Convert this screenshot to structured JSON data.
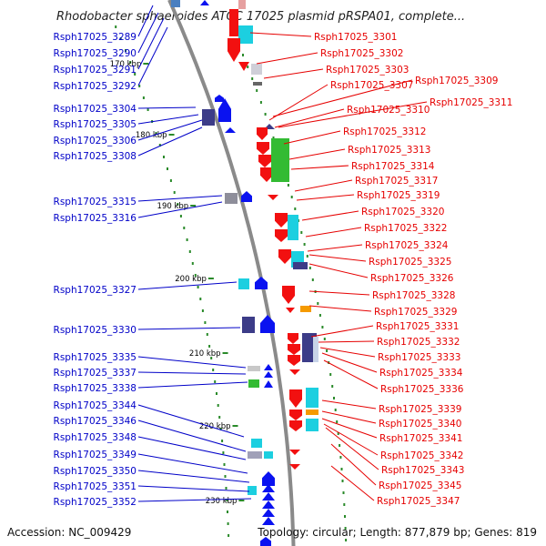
{
  "title": "Rhodobacter sphaeroides ATCC 17025 plasmid pRSPA01, complete...",
  "footer": {
    "accession_label": "Accession:",
    "accession": "NC_009429",
    "topology_text": "Topology: circular; Length: 877,879 bp; Genes: 819"
  },
  "colors": {
    "left_label": "#0000c8",
    "right_label": "#e60000",
    "backbone": "#8a8a8a",
    "gene_reverse_arrow": "#0a12f0",
    "gene_forward_arrow": "#f21010",
    "gene_green": "#33bb33",
    "gene_cyan": "#1ccfe0",
    "gene_navy": "#3c3c88",
    "gene_orange": "#f59a00",
    "gene_gray": "#8e8e9a"
  },
  "scale_ticks": [
    "170 kbp",
    "180 kbp",
    "190 kbp",
    "200 kbp",
    "210 kbp",
    "220 kbp",
    "230 kbp"
  ],
  "left_labels": [
    "Rsph17025_3289",
    "Rsph17025_3290",
    "Rsph17025_3291",
    "Rsph17025_3292",
    "Rsph17025_3304",
    "Rsph17025_3305",
    "Rsph17025_3306",
    "Rsph17025_3308",
    "Rsph17025_3315",
    "Rsph17025_3316",
    "Rsph17025_3327",
    "Rsph17025_3330",
    "Rsph17025_3335",
    "Rsph17025_3337",
    "Rsph17025_3338",
    "Rsph17025_3344",
    "Rsph17025_3346",
    "Rsph17025_3348",
    "Rsph17025_3349",
    "Rsph17025_3350",
    "Rsph17025_3351",
    "Rsph17025_3352"
  ],
  "right_labels": [
    "Rsph17025_3301",
    "Rsph17025_3302",
    "Rsph17025_3303",
    "Rsph17025_3307",
    "Rsph17025_3309",
    "Rsph17025_3310",
    "Rsph17025_3311",
    "Rsph17025_3312",
    "Rsph17025_3313",
    "Rsph17025_3314",
    "Rsph17025_3317",
    "Rsph17025_3319",
    "Rsph17025_3320",
    "Rsph17025_3322",
    "Rsph17025_3324",
    "Rsph17025_3325",
    "Rsph17025_3326",
    "Rsph17025_3328",
    "Rsph17025_3329",
    "Rsph17025_3331",
    "Rsph17025_3332",
    "Rsph17025_3333",
    "Rsph17025_3334",
    "Rsph17025_3336",
    "Rsph17025_3339",
    "Rsph17025_3340",
    "Rsph17025_3341",
    "Rsph17025_3342",
    "Rsph17025_3343",
    "Rsph17025_3345",
    "Rsph17025_3347"
  ]
}
